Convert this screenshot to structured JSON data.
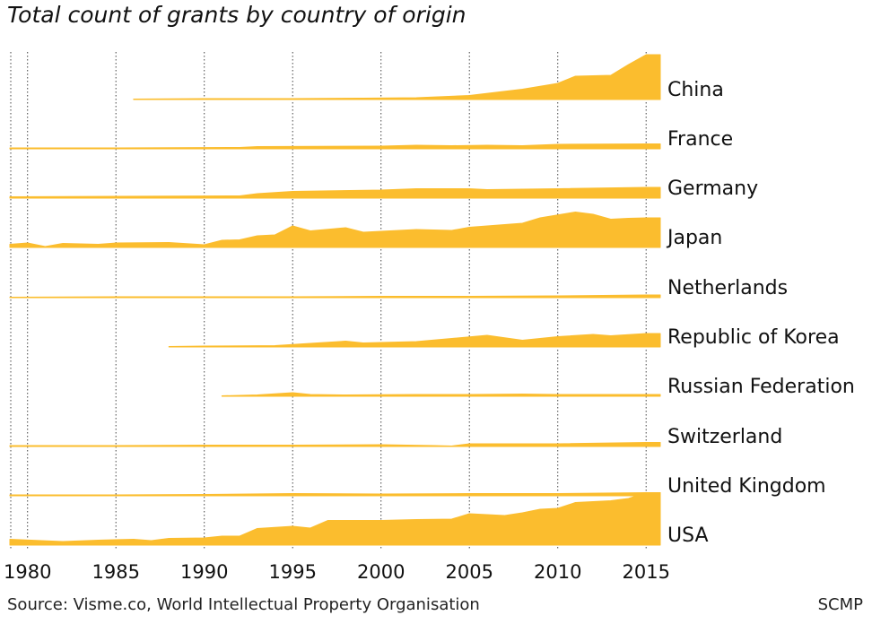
{
  "title": "Total count of grants by country of origin",
  "source": "Source: Visme.co, World Intellectual Property Organisation",
  "credit": "SCMP",
  "chart_data": {
    "type": "area",
    "subtype": "ridgeline",
    "title": "Total count of grants by country of origin",
    "xlabel": "",
    "ylabel": "",
    "x_ticks": [
      1980,
      1985,
      1990,
      1995,
      2000,
      2005,
      2010,
      2015
    ],
    "xlim": [
      1980,
      2015
    ],
    "grid": "vertical dotted lines every 5 years",
    "fill_color": "#fbbd2e",
    "y_axis_shown": false,
    "series": [
      {
        "name": "China",
        "points": [
          [
            1986,
            1
          ],
          [
            1990,
            2
          ],
          [
            1995,
            2
          ],
          [
            1999,
            3
          ],
          [
            2002,
            4
          ],
          [
            2005,
            9
          ],
          [
            2008,
            23
          ],
          [
            2010,
            36
          ],
          [
            2011,
            52
          ],
          [
            2013,
            54
          ],
          [
            2014,
            78
          ],
          [
            2015,
            100
          ]
        ]
      },
      {
        "name": "France",
        "points": [
          [
            1979,
            2
          ],
          [
            1985,
            2
          ],
          [
            1992,
            3
          ],
          [
            1993,
            5
          ],
          [
            2000,
            6
          ],
          [
            2002,
            8
          ],
          [
            2004,
            7
          ],
          [
            2006,
            8
          ],
          [
            2008,
            7
          ],
          [
            2010,
            10
          ],
          [
            2015,
            11
          ]
        ]
      },
      {
        "name": "Germany",
        "points": [
          [
            1979,
            3
          ],
          [
            1985,
            4
          ],
          [
            1992,
            5
          ],
          [
            1993,
            10
          ],
          [
            1995,
            15
          ],
          [
            2000,
            18
          ],
          [
            2002,
            21
          ],
          [
            2005,
            21
          ],
          [
            2006,
            19
          ],
          [
            2010,
            21
          ],
          [
            2015,
            24
          ]
        ]
      },
      {
        "name": "Japan",
        "points": [
          [
            1979,
            7
          ],
          [
            1980,
            10
          ],
          [
            1981,
            2
          ],
          [
            1982,
            9
          ],
          [
            1984,
            7
          ],
          [
            1985,
            10
          ],
          [
            1988,
            11
          ],
          [
            1990,
            6
          ],
          [
            1991,
            16
          ],
          [
            1992,
            17
          ],
          [
            1993,
            26
          ],
          [
            1994,
            28
          ],
          [
            1995,
            48
          ],
          [
            1996,
            37
          ],
          [
            1998,
            44
          ],
          [
            1999,
            34
          ],
          [
            2002,
            40
          ],
          [
            2004,
            38
          ],
          [
            2005,
            45
          ],
          [
            2008,
            54
          ],
          [
            2009,
            66
          ],
          [
            2011,
            79
          ],
          [
            2012,
            74
          ],
          [
            2013,
            63
          ],
          [
            2014,
            65
          ],
          [
            2015,
            66
          ]
        ]
      },
      {
        "name": "Netherlands",
        "points": [
          [
            1979,
            1
          ],
          [
            1985,
            2
          ],
          [
            1990,
            2
          ],
          [
            1995,
            2
          ],
          [
            2000,
            3
          ],
          [
            2005,
            3
          ],
          [
            2010,
            4
          ],
          [
            2015,
            6
          ]
        ]
      },
      {
        "name": "Republic of Korea",
        "points": [
          [
            1988,
            1
          ],
          [
            1990,
            2
          ],
          [
            1994,
            3
          ],
          [
            1996,
            8
          ],
          [
            1998,
            13
          ],
          [
            1999,
            9
          ],
          [
            2002,
            12
          ],
          [
            2004,
            19
          ],
          [
            2006,
            26
          ],
          [
            2008,
            15
          ],
          [
            2010,
            23
          ],
          [
            2012,
            28
          ],
          [
            2013,
            25
          ],
          [
            2015,
            30
          ]
        ]
      },
      {
        "name": "Russian Federation",
        "points": [
          [
            1991,
            1
          ],
          [
            1993,
            3
          ],
          [
            1995,
            8
          ],
          [
            1996,
            4
          ],
          [
            1998,
            3
          ],
          [
            2002,
            4
          ],
          [
            2005,
            4
          ],
          [
            2008,
            5
          ],
          [
            2010,
            4
          ],
          [
            2015,
            4
          ]
        ]
      },
      {
        "name": "Switzerland",
        "points": [
          [
            1979,
            2
          ],
          [
            1985,
            2
          ],
          [
            1990,
            3
          ],
          [
            1995,
            3
          ],
          [
            2000,
            4
          ],
          [
            2003,
            2
          ],
          [
            2004,
            1
          ],
          [
            2005,
            6
          ],
          [
            2010,
            6
          ],
          [
            2015,
            9
          ]
        ]
      },
      {
        "name": "United Kingdom",
        "points": [
          [
            1979,
            2
          ],
          [
            1985,
            2
          ],
          [
            1990,
            3
          ],
          [
            1995,
            5
          ],
          [
            2000,
            4
          ],
          [
            2005,
            5
          ],
          [
            2010,
            5
          ],
          [
            2015,
            7
          ]
        ]
      },
      {
        "name": "USA",
        "points": [
          [
            1979,
            13
          ],
          [
            1982,
            8
          ],
          [
            1984,
            11
          ],
          [
            1986,
            13
          ],
          [
            1987,
            10
          ],
          [
            1988,
            15
          ],
          [
            1990,
            16
          ],
          [
            1991,
            20
          ],
          [
            1992,
            20
          ],
          [
            1993,
            37
          ],
          [
            1995,
            42
          ],
          [
            1996,
            38
          ],
          [
            1997,
            55
          ],
          [
            2000,
            55
          ],
          [
            2002,
            57
          ],
          [
            2004,
            58
          ],
          [
            2005,
            70
          ],
          [
            2007,
            66
          ],
          [
            2008,
            72
          ],
          [
            2009,
            80
          ],
          [
            2010,
            82
          ],
          [
            2011,
            95
          ],
          [
            2013,
            99
          ],
          [
            2014,
            104
          ],
          [
            2015,
            117
          ]
        ]
      }
    ]
  }
}
